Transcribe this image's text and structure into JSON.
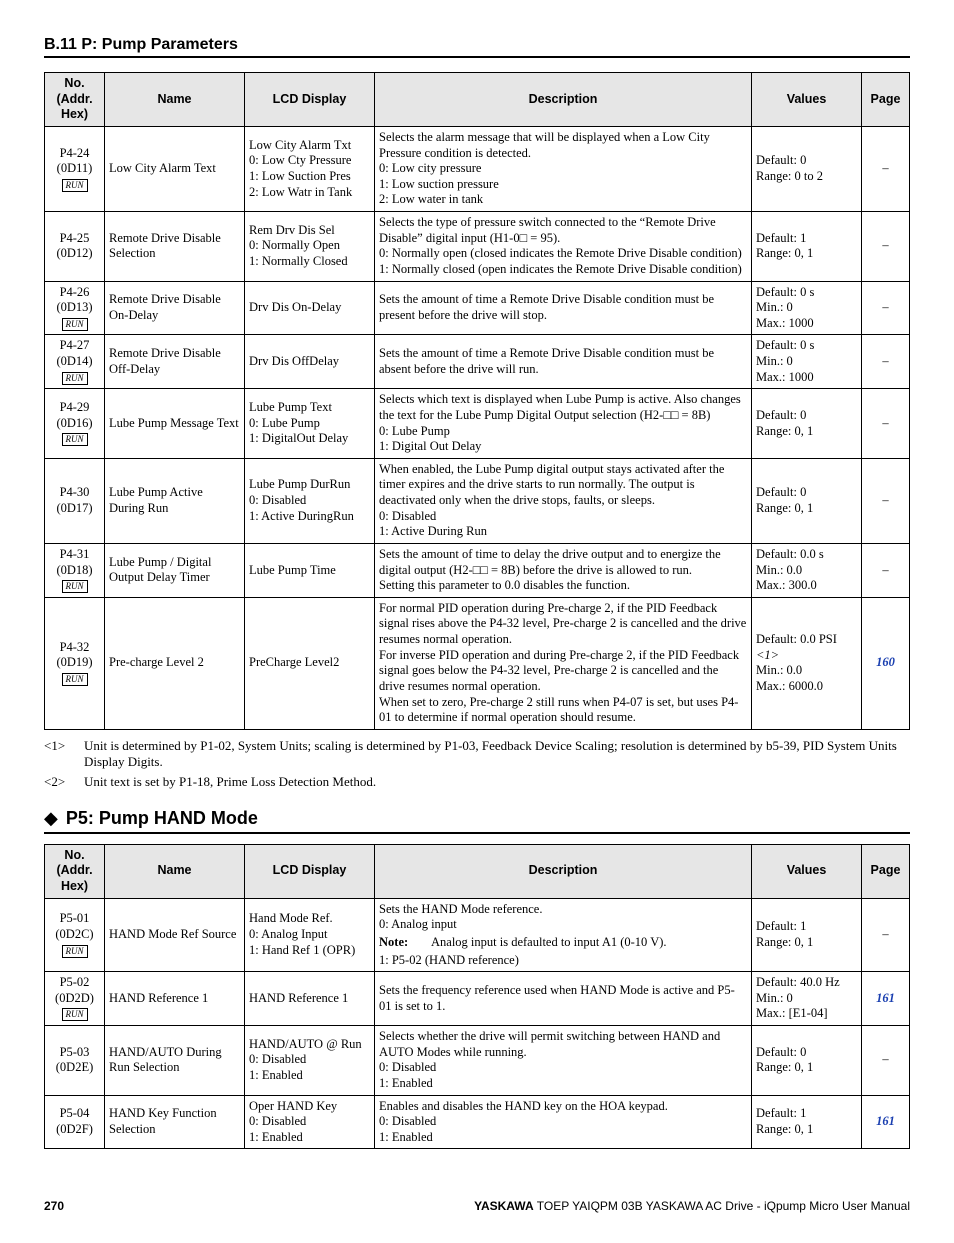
{
  "top_heading": "B.11 P: Pump Parameters",
  "headers": {
    "no": "No.\n(Addr.\nHex)",
    "name": "Name",
    "lcd": "LCD Display",
    "desc": "Description",
    "values": "Values",
    "page": "Page"
  },
  "table1": [
    {
      "no": "P4-24\n(0D11)",
      "run": true,
      "name": "Low City Alarm Text",
      "lcd": "Low City Alarm Txt\n0: Low Cty Pressure\n1: Low Suction Pres\n2: Low Watr in Tank",
      "desc": "Selects the alarm message that will be displayed when a Low City Pressure condition is detected.\n0: Low city pressure\n1: Low suction pressure\n2: Low water in tank",
      "values": "Default: 0\nRange: 0 to 2",
      "page": "–"
    },
    {
      "no": "P4-25\n(0D12)",
      "run": false,
      "name": "Remote Drive Disable Selection",
      "lcd": "Rem Drv Dis Sel\n0: Normally Open\n1: Normally Closed",
      "desc": "Selects the type of pressure switch connected to the “Remote Drive Disable” digital input (H1-0□ = 95).\n0: Normally open (closed indicates the Remote Drive Disable condition)\n1: Normally closed (open indicates the Remote Drive Disable condition)",
      "values": "Default: 1\nRange: 0, 1",
      "page": "–"
    },
    {
      "no": "P4-26\n(0D13)",
      "run": true,
      "name": "Remote Drive Disable On-Delay",
      "lcd": "Drv Dis On-Delay",
      "desc": "Sets the amount of time a Remote Drive Disable condition must be present before the drive will stop.",
      "values": "Default: 0 s\nMin.: 0\nMax.: 1000",
      "page": "–"
    },
    {
      "no": "P4-27\n(0D14)",
      "run": true,
      "name": "Remote Drive Disable Off-Delay",
      "lcd": "Drv Dis OffDelay",
      "desc": "Sets the amount of time a Remote Drive Disable condition must be absent before the drive will run.",
      "values": "Default: 0 s\nMin.: 0\nMax.: 1000",
      "page": "–"
    },
    {
      "no": "P4-29\n(0D16)",
      "run": true,
      "name": "Lube Pump Message Text",
      "lcd": "Lube Pump Text\n0: Lube Pump\n1: DigitalOut Delay",
      "desc": "Selects which text is displayed when Lube Pump is active. Also changes the text for the Lube Pump Digital Output selection (H2-□□ = 8B)\n0: Lube Pump\n1: Digital Out Delay",
      "values": "Default: 0\nRange: 0, 1",
      "page": "–"
    },
    {
      "no": "P4-30\n(0D17)",
      "run": false,
      "name": "Lube Pump Active During Run",
      "lcd": "Lube Pump DurRun\n0: Disabled\n1: Active DuringRun",
      "desc": "When enabled, the Lube Pump digital output stays activated after the timer expires and the drive starts to run normally. The output is deactivated only when the drive stops, faults, or sleeps.\n0: Disabled\n1: Active During Run",
      "values": "Default: 0\nRange: 0, 1",
      "page": "–"
    },
    {
      "no": "P4-31\n(0D18)",
      "run": true,
      "name": "Lube Pump / Digital Output Delay Timer",
      "lcd": "Lube Pump Time",
      "desc": "Sets the amount of time to delay the drive output and to energize the digital output (H2-□□ = 8B) before the drive is allowed to run.\nSetting this parameter to 0.0 disables the function.",
      "values": "Default: 0.0 s\nMin.: 0.0\nMax.: 300.0",
      "page": "–"
    },
    {
      "no": "P4-32\n(0D19)",
      "run": true,
      "name": "Pre-charge Level 2",
      "lcd": "PreCharge Level2",
      "desc": "For normal PID operation during Pre-charge 2, if the PID Feedback signal rises above the P4-32 level, Pre-charge 2 is cancelled and the drive resumes normal operation.\nFor inverse PID operation and during Pre-charge 2, if the PID Feedback signal goes below the P4-32 level, Pre-charge 2 is cancelled and the drive resumes normal operation.\nWhen set to zero, Pre-charge 2 still runs when P4-07 is set, but uses P4-01 to determine if normal operation should resume.",
      "values_html": "Default: 0.0 PSI<br><i>&lt;1&gt;</i><br>Min.: 0.0<br>Max.: 6000.0",
      "page": "160",
      "page_link": true
    }
  ],
  "notes": [
    {
      "tag": "<1>",
      "txt": "Unit is determined by P1-02, System Units; scaling is determined by P1-03, Feedback Device Scaling; resolution is determined by b5-39, PID System Units Display Digits."
    },
    {
      "tag": "<2>",
      "txt": "Unit text is set by P1-18, Prime Loss Detection Method."
    }
  ],
  "section2_title": "P5: Pump HAND Mode",
  "table2": [
    {
      "no": "P5-01\n(0D2C)",
      "run": true,
      "name": "HAND Mode Ref Source",
      "lcd": "Hand Mode Ref.\n0: Analog Input\n1: Hand Ref 1 (OPR)",
      "desc_html": "Sets the HAND Mode reference.<br>0: Analog input<div class=\"desc-note\"><span class=\"lbl\">Note:</span><span>Analog input is defaulted to input A1 (0-10 V).</span></div>1: P5-02 (HAND reference)",
      "values": "Default: 1\nRange: 0, 1",
      "page": "–"
    },
    {
      "no": "P5-02\n(0D2D)",
      "run": true,
      "name": "HAND Reference 1",
      "lcd": "HAND Reference 1",
      "desc": "Sets the frequency reference used when HAND Mode is active and P5-01 is set to 1.",
      "values": "Default: 40.0 Hz\nMin.: 0\nMax.: [E1-04]",
      "page": "161",
      "page_link": true
    },
    {
      "no": "P5-03\n(0D2E)",
      "run": false,
      "name": "HAND/AUTO During Run Selection",
      "lcd": "HAND/AUTO @ Run\n0: Disabled\n1: Enabled",
      "desc": "Selects whether the drive will permit switching between HAND and AUTO Modes while running.\n0: Disabled\n1: Enabled",
      "values": "Default: 0\nRange: 0, 1",
      "page": "–"
    },
    {
      "no": "P5-04\n(0D2F)",
      "run": false,
      "name": "HAND Key Function Selection",
      "lcd": "Oper HAND Key\n0: Disabled\n1: Enabled",
      "desc": "Enables and disables the HAND key on the HOA keypad.\n0: Disabled\n1: Enabled",
      "values": "Default: 1\nRange: 0, 1",
      "page": "161",
      "page_link": true
    }
  ],
  "footer": {
    "page_num": "270",
    "manual_bold": "YASKAWA",
    "manual_rest": " TOEP YAIQPM 03B YASKAWA AC Drive - iQpump Micro User Manual"
  }
}
